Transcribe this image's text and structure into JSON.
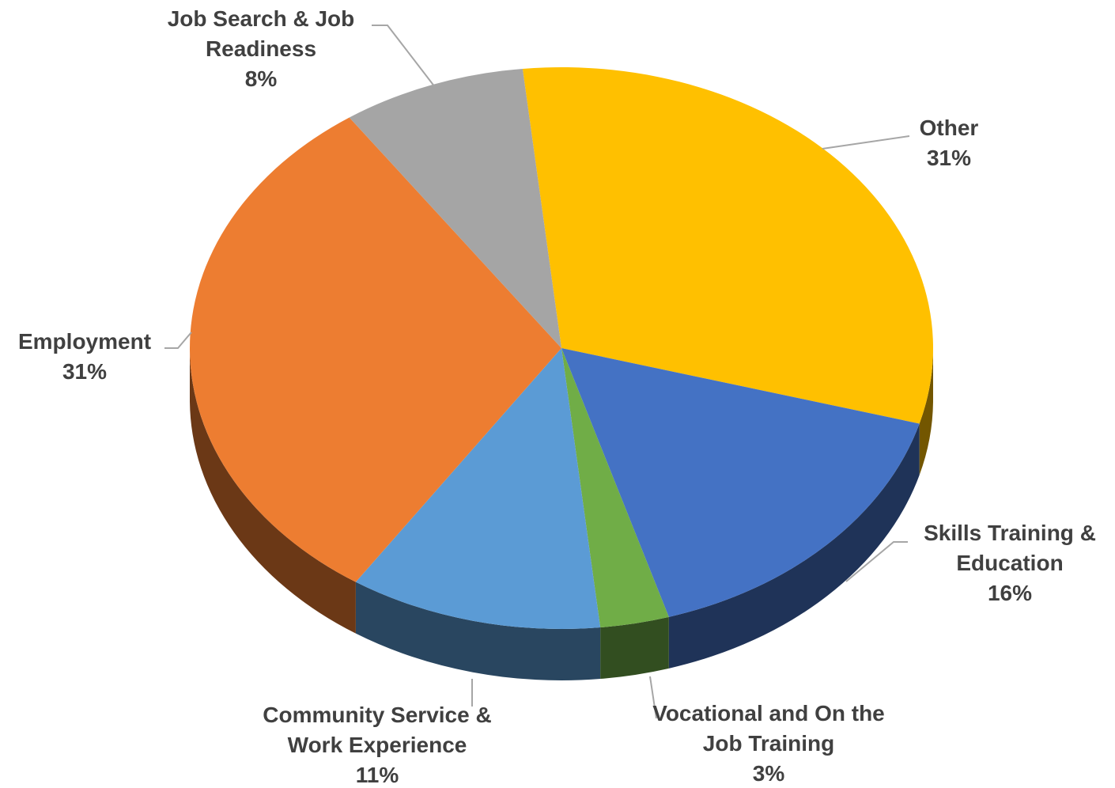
{
  "chart_data": {
    "type": "pie",
    "categories": [
      "Other",
      "Skills Training & Education",
      "Vocational and On the Job Training",
      "Community Service & Work Experience",
      "Employment",
      "Job Search & Job Readiness"
    ],
    "values": [
      31,
      16,
      3,
      11,
      31,
      8
    ],
    "value_labels": [
      "31%",
      "16%",
      "3%",
      "11%",
      "31%",
      "8%"
    ],
    "colors": [
      "#ffc000",
      "#4472c4",
      "#70ad47",
      "#5b9bd5",
      "#ed7d31",
      "#a5a5a5"
    ]
  }
}
